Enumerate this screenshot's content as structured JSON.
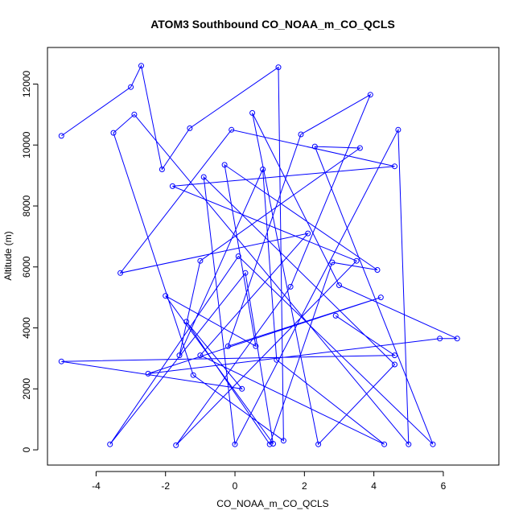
{
  "chart_data": {
    "type": "line",
    "title": "ATOM3 Southbound CO_NOAA_m_CO_QCLS",
    "xlabel": "CO_NOAA_m_CO_QCLS",
    "ylabel": "Altitude (m)",
    "xlim": [
      -5.4,
      7.6
    ],
    "ylim": [
      -500,
      13200
    ],
    "xticks": [
      -4,
      -2,
      0,
      2,
      4,
      6
    ],
    "yticks": [
      0,
      2000,
      4000,
      6000,
      8000,
      10000,
      12000
    ],
    "grid": false,
    "line_color": "#0000ff",
    "marker": "open-circle",
    "series": [
      {
        "x": [
          -5.0,
          -3.0,
          -2.7,
          -2.1,
          -1.3,
          1.25,
          1.4,
          -1.2,
          -3.5,
          -2.9,
          5.0,
          4.7,
          0.0,
          -0.9,
          4.6,
          2.4,
          0.5,
          3.0,
          6.4,
          5.9,
          -2.5,
          4.2,
          -0.2,
          1.9,
          3.9,
          1.6,
          -1.7,
          3.5,
          -1.8,
          4.6,
          -0.1,
          -3.3,
          2.1,
          -1.0,
          4.3,
          1.2,
          0.8,
          -1.6,
          -1.0,
          3.6,
          2.3,
          5.7,
          0.1,
          -3.6,
          0.3,
          1.1,
          -2.0,
          0.6,
          -0.3,
          4.1,
          2.8,
          1.0,
          -1.4,
          0.2,
          -5.0,
          4.6,
          2.9
        ],
        "y": [
          10300,
          11900,
          12600,
          9200,
          10550,
          12550,
          300,
          2450,
          10400,
          11000,
          180,
          10500,
          180,
          8950,
          2800,
          180,
          11050,
          5400,
          3650,
          3650,
          2500,
          5000,
          3400,
          10350,
          11650,
          5350,
          150,
          6200,
          8650,
          9300,
          10500,
          5800,
          7100,
          3100,
          180,
          2950,
          9200,
          3100,
          6200,
          9900,
          9950,
          180,
          6350,
          180,
          5800,
          200,
          5050,
          3400,
          9350,
          5900,
          6150,
          180,
          4200,
          2000,
          2900,
          3100,
          4400
        ]
      }
    ]
  }
}
